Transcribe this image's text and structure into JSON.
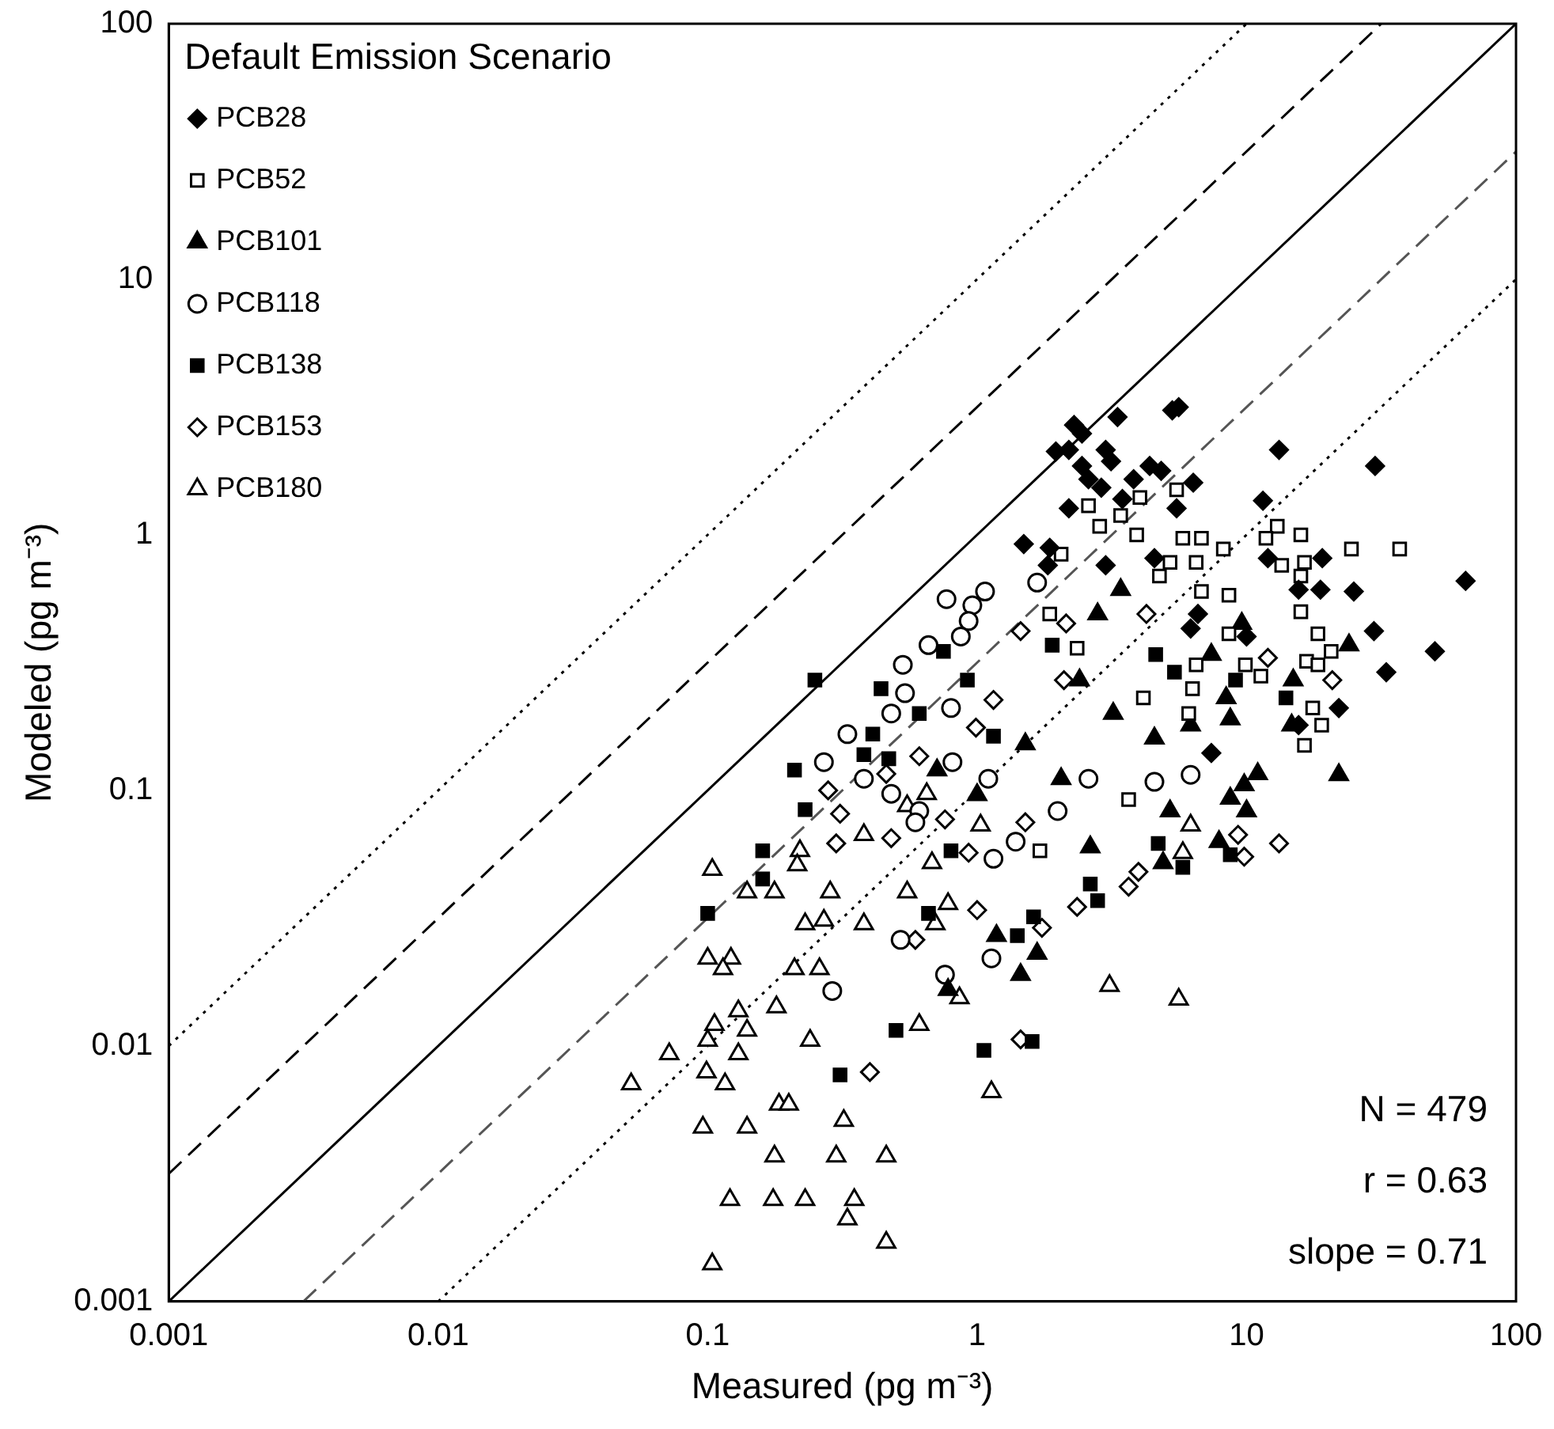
{
  "chart_data": {
    "type": "scatter",
    "xlabel": "Measured (pg m⁻³)",
    "ylabel": "Modeled (pg m⁻³)",
    "legend_title": "Default Emission Scenario",
    "legend": "top left",
    "log": "xy",
    "xlim": [
      0.001,
      100
    ],
    "ylim": [
      0.001,
      100
    ],
    "xticks": [
      0.001,
      0.01,
      0.1,
      1,
      10,
      100
    ],
    "yticks": [
      0.001,
      0.01,
      0.1,
      1,
      10,
      100
    ],
    "annotations": [
      "N = 479",
      "r = 0.63",
      "slope = 0.71"
    ],
    "series": [
      {
        "name": "PCB28",
        "color": "#000000",
        "marker": "diamond",
        "x": [
          2.29,
          2.45,
          3.32,
          2.19,
          5.3,
          5.6,
          2.59,
          3.14,
          4.37,
          1.49,
          1.86,
          2.89,
          3.81,
          4.82,
          6.34,
          13.2,
          30,
          65,
          50,
          33,
          29.7,
          25,
          18.8,
          15.6,
          19.1,
          12,
          11.5,
          22,
          15.6,
          6.2,
          10,
          7.4,
          1.96,
          3.0,
          2.45,
          2.19,
          3.46,
          5.5,
          4.55,
          1.83,
          3.0,
          6.6
        ],
        "values": [
          2.69,
          2.49,
          2.89,
          2.15,
          3.07,
          3.16,
          1.65,
          1.94,
          1.86,
          0.92,
          0.89,
          1.53,
          1.65,
          1.78,
          1.6,
          2.15,
          1.86,
          0.66,
          0.35,
          0.29,
          0.42,
          0.6,
          0.61,
          0.61,
          0.81,
          0.81,
          1.36,
          0.21,
          0.18,
          0.43,
          0.4,
          0.14,
          2.12,
          2.15,
          1.86,
          1.27,
          1.38,
          1.27,
          0.81,
          0.76,
          0.76,
          0.49
        ]
      },
      {
        "name": "PCB52",
        "color": "#ffffff",
        "marker": "square",
        "x": [
          2.59,
          4.02,
          5.5,
          3.41,
          2.85,
          3.91,
          5.8,
          6.8,
          8.2,
          13,
          15.9,
          11.8,
          24.5,
          37,
          2.05,
          13.5,
          16.4,
          15.9,
          5.2,
          6.5,
          4.75,
          6.8,
          8.6,
          15.9,
          18.4,
          20.6,
          16.7,
          18.4,
          11.3,
          9.9,
          6.5,
          4.14,
          6.3,
          17.6,
          19,
          16.4,
          8.6,
          2.35,
          6.1,
          3.65,
          1.71,
          1.86
        ],
        "values": [
          1.3,
          1.4,
          1.5,
          1.19,
          1.08,
          1.0,
          0.97,
          0.97,
          0.88,
          1.08,
          1.0,
          0.97,
          0.88,
          0.88,
          0.84,
          0.76,
          0.78,
          0.69,
          0.78,
          0.78,
          0.69,
          0.6,
          0.58,
          0.5,
          0.41,
          0.35,
          0.32,
          0.31,
          0.28,
          0.31,
          0.31,
          0.23,
          0.25,
          0.21,
          0.18,
          0.15,
          0.41,
          0.36,
          0.2,
          0.092,
          0.058,
          0.49
        ]
      },
      {
        "name": "PCB101",
        "color": "#000000",
        "marker": "triangle",
        "x": [
          3.41,
          9.6,
          24,
          14.9,
          7.4,
          8.4,
          8.7,
          4.55,
          3.2,
          6.2,
          2.8,
          2.4,
          11,
          9.8,
          8.7,
          10,
          5.2,
          7.9,
          4.9,
          1.18,
          1.67,
          1.45,
          0.78,
          2.63,
          2.05,
          1.51,
          1.0,
          0.71,
          22,
          14.7
        ],
        "values": [
          0.61,
          0.45,
          0.37,
          0.27,
          0.34,
          0.23,
          0.19,
          0.16,
          0.2,
          0.18,
          0.49,
          0.27,
          0.116,
          0.105,
          0.093,
          0.083,
          0.083,
          0.063,
          0.052,
          0.027,
          0.023,
          0.019,
          0.0166,
          0.06,
          0.111,
          0.152,
          0.096,
          0.12,
          0.115,
          0.18
        ]
      },
      {
        "name": "PCB118",
        "color": "#ffffff",
        "marker": "circle",
        "x": [
          1.07,
          0.77,
          0.96,
          0.93,
          0.87,
          0.66,
          0.53,
          0.54,
          0.48,
          0.33,
          0.27,
          0.8,
          1.67,
          0.38,
          0.48,
          0.61,
          0.59,
          0.81,
          1.1,
          1.99,
          1.39,
          1.15,
          6.2,
          2.59,
          0.52,
          1.13,
          0.76,
          0.29,
          4.55
        ],
        "values": [
          0.6,
          0.56,
          0.53,
          0.46,
          0.4,
          0.37,
          0.31,
          0.24,
          0.2,
          0.166,
          0.129,
          0.21,
          0.65,
          0.111,
          0.097,
          0.083,
          0.075,
          0.129,
          0.111,
          0.083,
          0.063,
          0.054,
          0.115,
          0.111,
          0.026,
          0.022,
          0.019,
          0.0164,
          0.108
        ]
      },
      {
        "name": "PCB138",
        "color": "#000000",
        "marker": "square",
        "x": [
          0.25,
          0.44,
          0.75,
          0.61,
          0.41,
          0.38,
          0.47,
          0.21,
          1.15,
          0.92,
          0.23,
          0.16,
          0.16,
          0.1,
          0.8,
          0.66,
          1.62,
          1.41,
          2.63,
          2.8,
          5.8,
          4.7,
          8.7,
          0.5,
          1.6,
          0.31,
          1.06,
          14,
          9.1,
          4.6,
          5.4,
          1.9
        ],
        "values": [
          0.27,
          0.25,
          0.35,
          0.2,
          0.166,
          0.138,
          0.133,
          0.12,
          0.163,
          0.27,
          0.084,
          0.058,
          0.045,
          0.033,
          0.058,
          0.033,
          0.032,
          0.027,
          0.043,
          0.037,
          0.05,
          0.062,
          0.056,
          0.0115,
          0.0104,
          0.0077,
          0.0096,
          0.23,
          0.27,
          0.34,
          0.29,
          0.37
        ]
      },
      {
        "name": "PCB153",
        "color": "#ffffff",
        "marker": "diamond",
        "x": [
          12,
          20.8,
          4.25,
          2.14,
          2.1,
          13.2,
          9.8,
          9.3,
          3.97,
          3.65,
          2.35,
          1.74,
          1.0,
          0.59,
          1.45,
          0.76,
          0.93,
          0.31,
          0.3,
          0.48,
          0.46,
          1.51,
          0.4,
          0.28,
          1.45,
          1.15,
          0.61,
          0.99
        ],
        "values": [
          0.33,
          0.27,
          0.49,
          0.45,
          0.27,
          0.062,
          0.055,
          0.067,
          0.048,
          0.042,
          0.035,
          0.029,
          0.034,
          0.026,
          0.0106,
          0.077,
          0.057,
          0.081,
          0.062,
          0.065,
          0.116,
          0.075,
          0.0079,
          0.1,
          0.42,
          0.226,
          0.136,
          0.176
        ]
      },
      {
        "name": "PCB180",
        "color": "#ffffff",
        "marker": "triangle",
        "x": [
          0.106,
          0.13,
          0.1,
          0.14,
          0.13,
          0.072,
          0.099,
          0.116,
          0.052,
          0.24,
          0.184,
          0.2,
          0.32,
          0.096,
          0.14,
          0.177,
          0.3,
          0.46,
          0.121,
          0.175,
          0.23,
          0.35,
          0.33,
          0.46,
          0.104,
          0.104,
          0.14,
          0.177,
          0.22,
          0.215,
          0.285,
          0.23,
          0.27,
          0.1,
          0.122,
          0.114,
          0.21,
          0.26,
          0.18,
          3.1,
          5.6,
          0.38,
          0.55,
          0.7,
          0.78,
          0.86,
          0.61,
          0.38,
          0.55,
          0.65,
          1.03,
          0.68,
          6.2,
          5.8,
          1.13
        ],
        "values": [
          0.0121,
          0.0137,
          0.0105,
          0.0115,
          0.0093,
          0.0093,
          0.0079,
          0.0071,
          0.0071,
          0.0105,
          0.0059,
          0.0059,
          0.0051,
          0.0048,
          0.0048,
          0.0037,
          0.0037,
          0.0037,
          0.0025,
          0.0025,
          0.0025,
          0.0025,
          0.0021,
          0.0017,
          0.0014,
          0.049,
          0.04,
          0.04,
          0.058,
          0.051,
          0.04,
          0.03,
          0.031,
          0.022,
          0.022,
          0.02,
          0.02,
          0.02,
          0.0142,
          0.0172,
          0.0152,
          0.03,
          0.04,
          0.03,
          0.036,
          0.0154,
          0.0121,
          0.067,
          0.087,
          0.097,
          0.073,
          0.052,
          0.073,
          0.057,
          0.0066
        ]
      },
      {
        "type": "line",
        "color": "#000000",
        "line_style": "solid",
        "marker": "none",
        "x": [
          0.001,
          100
        ],
        "values": [
          0.001,
          100
        ]
      },
      {
        "type": "line",
        "color": "#000000",
        "line_style": "dashed",
        "marker": "none",
        "x": [
          0.001,
          31.6
        ],
        "values": [
          0.00316,
          100
        ]
      },
      {
        "type": "line",
        "color": "#555555",
        "line_style": "dashed",
        "marker": "none",
        "x": [
          0.00316,
          100
        ],
        "values": [
          0.001,
          31.6
        ]
      },
      {
        "type": "line",
        "color": "#000000",
        "line_style": "dotted",
        "marker": "none",
        "x": [
          0.001,
          10
        ],
        "values": [
          0.01,
          100
        ]
      },
      {
        "type": "line",
        "color": "#000000",
        "line_style": "dotted",
        "marker": "none",
        "x": [
          0.01,
          100
        ],
        "values": [
          0.001,
          10
        ]
      }
    ]
  }
}
